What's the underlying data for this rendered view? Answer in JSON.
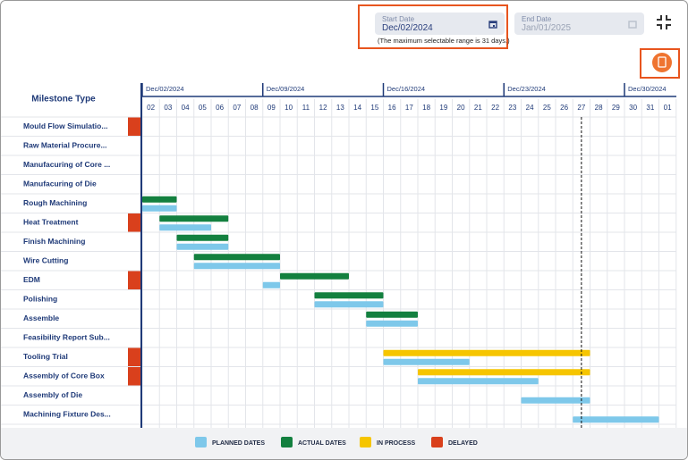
{
  "date_filter": {
    "start_label": "Start Date",
    "start_value": "Dec/02/2024",
    "end_label": "End Date",
    "end_value": "Jan/01/2025",
    "note": "(The maximum selectable range is 31 days.)"
  },
  "gantt": {
    "column_header": "Milestone Type",
    "weeks": [
      {
        "label": "Dec/02/2024",
        "day": "02"
      },
      {
        "label": "Dec/09/2024",
        "day": "09"
      },
      {
        "label": "Dec/16/2024",
        "day": "16"
      },
      {
        "label": "Dec/23/2024",
        "day": "23"
      },
      {
        "label": "Dec/30/2024",
        "day": "30"
      }
    ],
    "days": [
      "02",
      "03",
      "04",
      "05",
      "06",
      "07",
      "08",
      "09",
      "10",
      "11",
      "12",
      "13",
      "14",
      "15",
      "16",
      "17",
      "18",
      "19",
      "20",
      "21",
      "22",
      "23",
      "24",
      "25",
      "26",
      "27",
      "28",
      "29",
      "30",
      "31",
      "01"
    ],
    "today": "27",
    "rows": [
      {
        "name": "Mould Flow Simulatio...",
        "delayed": true,
        "bars": []
      },
      {
        "name": "Raw Material Procure...",
        "delayed": false,
        "bars": []
      },
      {
        "name": "Manufacuring of Core ...",
        "delayed": false,
        "bars": []
      },
      {
        "name": "Manufacuring of Die",
        "delayed": false,
        "bars": []
      },
      {
        "name": "Rough Machining",
        "delayed": false,
        "bars": [
          {
            "kind": "actual",
            "start": "02",
            "end": "03"
          },
          {
            "kind": "planned",
            "start": "02",
            "end": "03"
          }
        ]
      },
      {
        "name": "Heat Treatment",
        "delayed": true,
        "bars": [
          {
            "kind": "actual",
            "start": "03",
            "end": "06"
          },
          {
            "kind": "planned",
            "start": "03",
            "end": "05"
          }
        ]
      },
      {
        "name": "Finish Machining",
        "delayed": false,
        "bars": [
          {
            "kind": "actual",
            "start": "04",
            "end": "06"
          },
          {
            "kind": "planned",
            "start": "04",
            "end": "06"
          }
        ]
      },
      {
        "name": "Wire Cutting",
        "delayed": false,
        "bars": [
          {
            "kind": "actual",
            "start": "05",
            "end": "09"
          },
          {
            "kind": "planned",
            "start": "05",
            "end": "09"
          }
        ]
      },
      {
        "name": "EDM",
        "delayed": true,
        "bars": [
          {
            "kind": "actual",
            "start": "10",
            "end": "13"
          },
          {
            "kind": "planned",
            "start": "09",
            "end": "09"
          }
        ]
      },
      {
        "name": "Polishing",
        "delayed": false,
        "bars": [
          {
            "kind": "actual",
            "start": "12",
            "end": "15"
          },
          {
            "kind": "planned",
            "start": "12",
            "end": "15"
          }
        ]
      },
      {
        "name": "Assemble",
        "delayed": false,
        "bars": [
          {
            "kind": "actual",
            "start": "15",
            "end": "17"
          },
          {
            "kind": "planned",
            "start": "15",
            "end": "17"
          }
        ]
      },
      {
        "name": "Feasibility Report Sub...",
        "delayed": false,
        "bars": []
      },
      {
        "name": "Tooling Trial",
        "delayed": true,
        "bars": [
          {
            "kind": "in_process",
            "start": "16",
            "end": "27"
          },
          {
            "kind": "planned",
            "start": "16",
            "end": "20"
          }
        ]
      },
      {
        "name": "Assembly of Core Box",
        "delayed": true,
        "bars": [
          {
            "kind": "in_process",
            "start": "18",
            "end": "27"
          },
          {
            "kind": "planned",
            "start": "18",
            "end": "24"
          }
        ]
      },
      {
        "name": "Assembly of Die",
        "delayed": false,
        "bars": [
          {
            "kind": "planned",
            "start": "24",
            "end": "27"
          }
        ]
      },
      {
        "name": "Machining Fixture Des...",
        "delayed": false,
        "bars": [
          {
            "kind": "planned",
            "start": "27",
            "end": "31"
          }
        ]
      }
    ]
  },
  "legend": [
    {
      "kind": "planned",
      "label": "PLANNED DATES",
      "color": "#7ec8ea"
    },
    {
      "kind": "actual",
      "label": "ACTUAL DATES",
      "color": "#13803f"
    },
    {
      "kind": "in_process",
      "label": "IN PROCESS",
      "color": "#f6c500"
    },
    {
      "kind": "delayed",
      "label": "DELAYED",
      "color": "#d9401c"
    }
  ]
}
